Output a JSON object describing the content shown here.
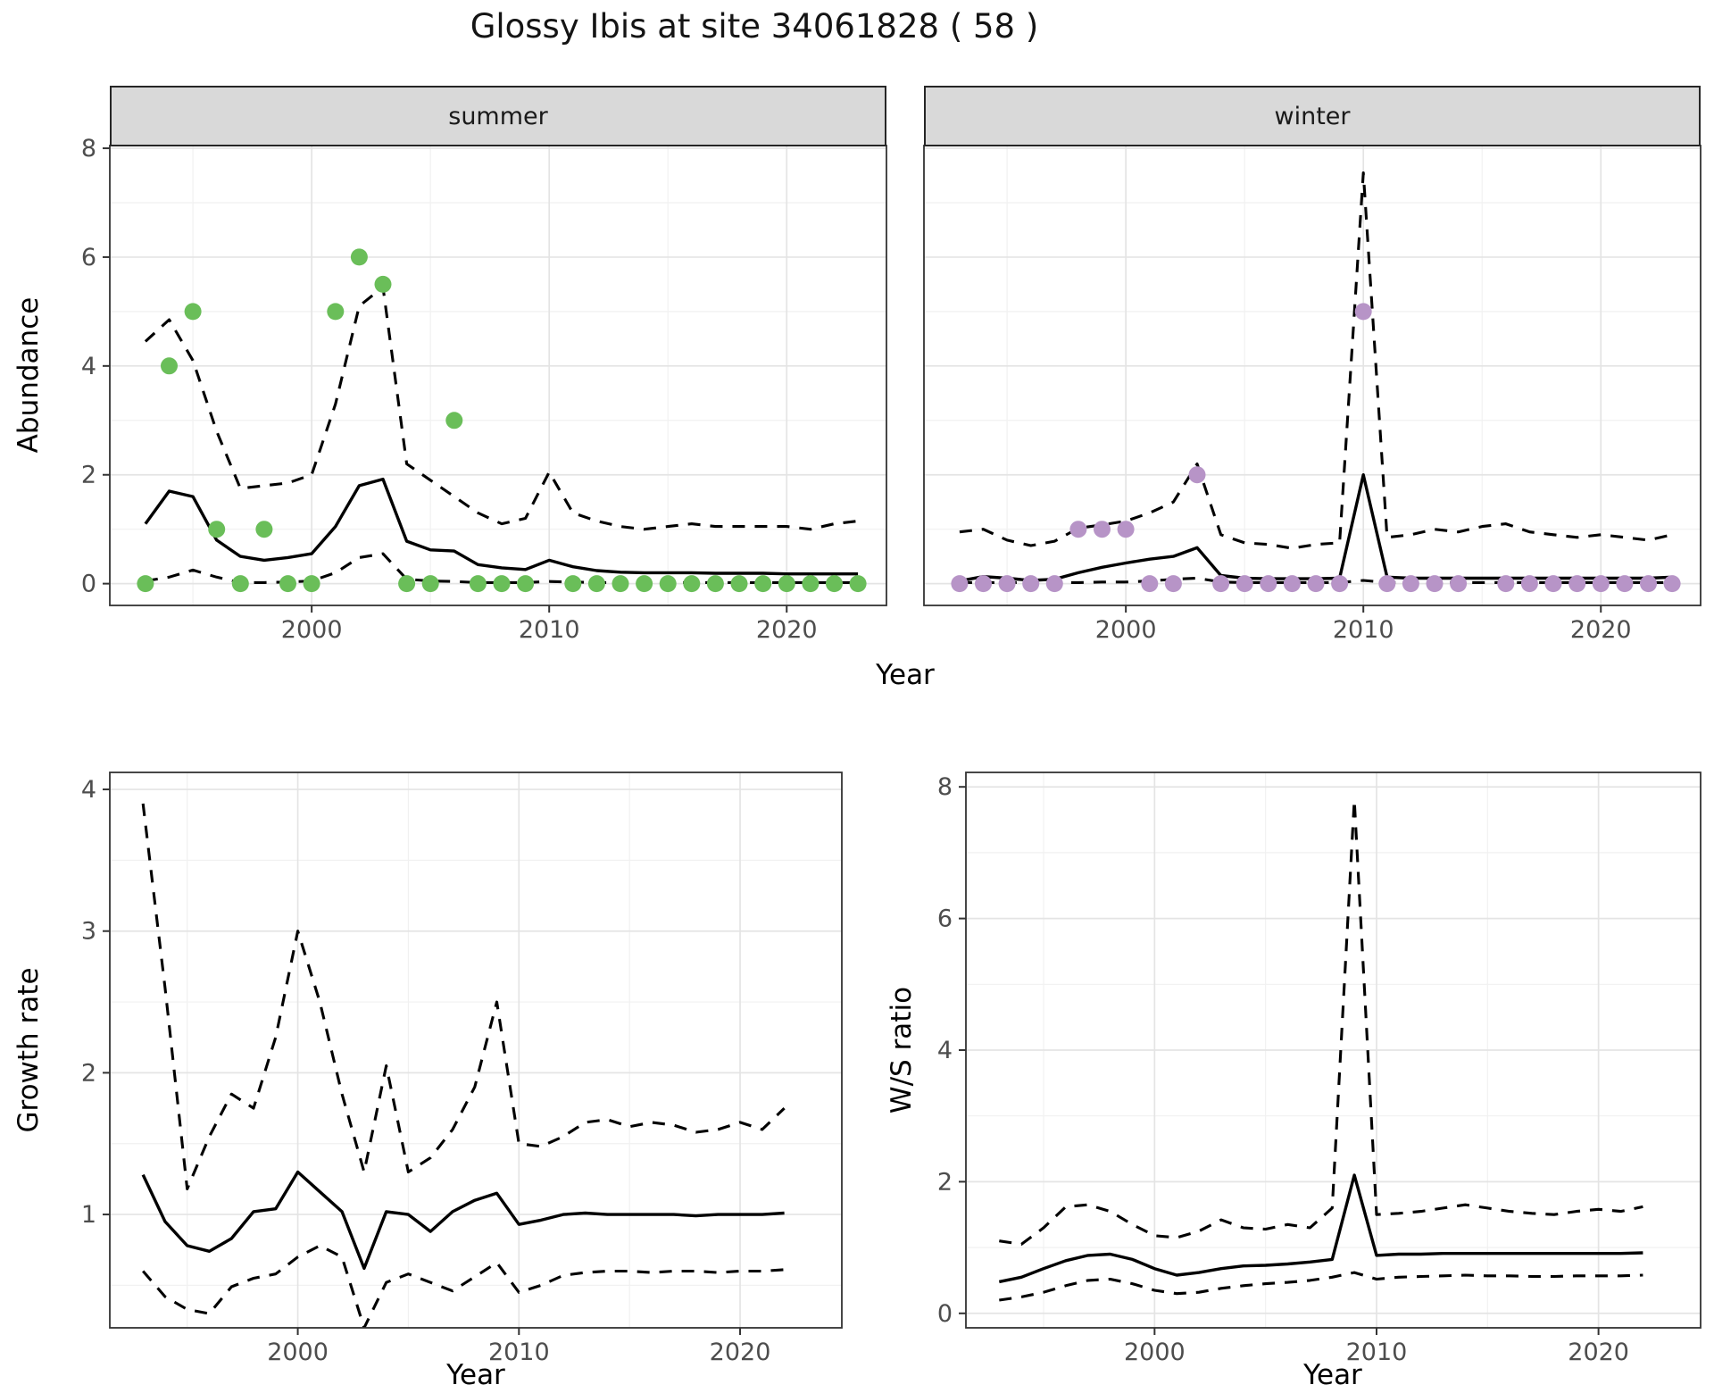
{
  "title": "Glossy Ibis at site 34061828 ( 58 )",
  "colors": {
    "point_summer": "#6abe59",
    "point_winter": "#b794c7",
    "line": "#000000",
    "strip_bg": "#d9d9d9",
    "grid_major": "#e4e4e4",
    "grid_minor": "#f1f1f1",
    "panel_border": "#333333",
    "tick_mark": "#333333",
    "tick_label": "#4d4d4d"
  },
  "chart_data": [
    {
      "id": "abundance-summer",
      "type": "line",
      "facet": "summer",
      "xlabel": "Year",
      "ylabel": "Abundance",
      "legend_position": "none",
      "grid": true,
      "xlim": [
        1991.5,
        2024.2
      ],
      "ylim": [
        -0.4,
        8.05
      ],
      "x_ticks": [
        2000,
        2010,
        2020
      ],
      "x_minor": [
        1995,
        2005,
        2015
      ],
      "y_ticks": [
        0,
        2,
        4,
        6,
        8
      ],
      "y_minor": [
        1,
        3,
        5,
        7
      ],
      "point_color": "#6abe59",
      "x": [
        1993,
        1994,
        1995,
        1996,
        1997,
        1998,
        1999,
        2000,
        2001,
        2002,
        2003,
        2004,
        2005,
        2006,
        2007,
        2008,
        2009,
        2010,
        2011,
        2012,
        2013,
        2014,
        2015,
        2016,
        2017,
        2018,
        2019,
        2020,
        2021,
        2022,
        2023
      ],
      "series": [
        {
          "name": "fit",
          "style": "solid",
          "values": [
            1.1,
            1.7,
            1.6,
            0.8,
            0.5,
            0.43,
            0.48,
            0.55,
            1.05,
            1.8,
            1.92,
            0.78,
            0.62,
            0.6,
            0.35,
            0.29,
            0.26,
            0.43,
            0.31,
            0.24,
            0.21,
            0.2,
            0.2,
            0.2,
            0.19,
            0.19,
            0.19,
            0.18,
            0.18,
            0.18,
            0.18
          ]
        },
        {
          "name": "upper_ci",
          "style": "dashed",
          "values": [
            4.45,
            4.85,
            4.1,
            2.8,
            1.75,
            1.8,
            1.85,
            2.0,
            3.3,
            5.1,
            5.45,
            2.2,
            1.9,
            1.6,
            1.3,
            1.1,
            1.2,
            2.05,
            1.3,
            1.15,
            1.05,
            1.0,
            1.05,
            1.1,
            1.05,
            1.05,
            1.05,
            1.05,
            1.0,
            1.1,
            1.15
          ]
        },
        {
          "name": "lower_ci",
          "style": "dashed",
          "values": [
            0.05,
            0.12,
            0.25,
            0.12,
            0.02,
            0.02,
            0.03,
            0.05,
            0.2,
            0.48,
            0.55,
            0.08,
            0.05,
            0.04,
            0.02,
            0.02,
            0.02,
            0.04,
            0.03,
            0.02,
            0.02,
            0.02,
            0.02,
            0.02,
            0.02,
            0.02,
            0.02,
            0.02,
            0.02,
            0.02,
            0.02
          ]
        }
      ],
      "obs": {
        "x": [
          1993,
          1994,
          1995,
          1996,
          1997,
          1998,
          1999,
          2000,
          2001,
          2002,
          2003,
          2004,
          2005,
          2006,
          2007,
          2008,
          2009,
          2011,
          2012,
          2013,
          2014,
          2015,
          2016,
          2017,
          2018,
          2019,
          2020,
          2021,
          2022,
          2023
        ],
        "y": [
          0,
          4,
          5,
          1,
          0,
          1,
          0,
          0,
          5,
          6,
          5.5,
          0,
          0,
          3,
          0,
          0,
          0,
          0,
          0,
          0,
          0,
          0,
          0,
          0,
          0,
          0,
          0,
          0,
          0,
          0
        ]
      }
    },
    {
      "id": "abundance-winter",
      "type": "line",
      "facet": "winter",
      "xlabel": "Year",
      "ylabel": "Abundance",
      "legend_position": "none",
      "grid": true,
      "xlim": [
        1991.5,
        2024.2
      ],
      "ylim": [
        -0.4,
        8.05
      ],
      "x_ticks": [
        2000,
        2010,
        2020
      ],
      "x_minor": [
        1995,
        2005,
        2015
      ],
      "y_ticks": [
        0,
        2,
        4,
        6,
        8
      ],
      "y_minor": [
        1,
        3,
        5,
        7
      ],
      "point_color": "#b794c7",
      "x": [
        1993,
        1994,
        1995,
        1996,
        1997,
        1998,
        1999,
        2000,
        2001,
        2002,
        2003,
        2004,
        2005,
        2006,
        2007,
        2008,
        2009,
        2010,
        2011,
        2012,
        2013,
        2014,
        2015,
        2016,
        2017,
        2018,
        2019,
        2020,
        2021,
        2022,
        2023
      ],
      "series": [
        {
          "name": "fit",
          "style": "solid",
          "values": [
            0.05,
            0.13,
            0.1,
            0.06,
            0.08,
            0.2,
            0.3,
            0.38,
            0.45,
            0.5,
            0.66,
            0.15,
            0.1,
            0.09,
            0.09,
            0.09,
            0.1,
            2.0,
            0.12,
            0.1,
            0.1,
            0.1,
            0.1,
            0.1,
            0.1,
            0.1,
            0.1,
            0.1,
            0.1,
            0.1,
            0.12
          ]
        },
        {
          "name": "upper_ci",
          "style": "dashed",
          "values": [
            0.95,
            1.0,
            0.8,
            0.7,
            0.78,
            1.02,
            1.08,
            1.15,
            1.3,
            1.5,
            2.2,
            0.9,
            0.75,
            0.72,
            0.65,
            0.72,
            0.75,
            7.55,
            0.85,
            0.9,
            1.0,
            0.95,
            1.05,
            1.1,
            0.95,
            0.9,
            0.85,
            0.9,
            0.85,
            0.8,
            0.9
          ]
        },
        {
          "name": "lower_ci",
          "style": "dashed",
          "values": [
            0.02,
            0.02,
            0.02,
            0.02,
            0.02,
            0.02,
            0.03,
            0.03,
            0.05,
            0.08,
            0.1,
            0.03,
            0.02,
            0.02,
            0.02,
            0.02,
            0.02,
            0.06,
            0.02,
            0.02,
            0.02,
            0.02,
            0.02,
            0.02,
            0.02,
            0.02,
            0.02,
            0.02,
            0.02,
            0.02,
            0.02
          ]
        }
      ],
      "obs": {
        "x": [
          1993,
          1994,
          1995,
          1996,
          1997,
          1998,
          1999,
          2000,
          2001,
          2002,
          2003,
          2004,
          2005,
          2006,
          2007,
          2008,
          2009,
          2010,
          2011,
          2012,
          2013,
          2014,
          2016,
          2017,
          2018,
          2019,
          2020,
          2021,
          2022,
          2023
        ],
        "y": [
          0,
          0,
          0,
          0,
          0,
          1,
          1,
          1,
          0,
          0,
          2,
          0,
          0,
          0,
          0,
          0,
          0,
          5,
          0,
          0,
          0,
          0,
          0,
          0,
          0,
          0,
          0,
          0,
          0,
          0
        ]
      }
    },
    {
      "id": "growth-rate",
      "type": "line",
      "facet": null,
      "xlabel": "Year",
      "ylabel": "Growth rate",
      "legend_position": "none",
      "grid": true,
      "xlim": [
        1991.5,
        2024.6
      ],
      "ylim": [
        0.2,
        4.12
      ],
      "x_ticks": [
        2000,
        2010,
        2020
      ],
      "x_minor": [
        1995,
        2005,
        2015
      ],
      "y_ticks": [
        1,
        2,
        3,
        4
      ],
      "y_minor": [
        0.5,
        1.5,
        2.5,
        3.5
      ],
      "point_color": null,
      "x": [
        1993,
        1994,
        1995,
        1996,
        1997,
        1998,
        1999,
        2000,
        2001,
        2002,
        2003,
        2004,
        2005,
        2006,
        2007,
        2008,
        2009,
        2010,
        2011,
        2012,
        2013,
        2014,
        2015,
        2016,
        2017,
        2018,
        2019,
        2020,
        2021,
        2022
      ],
      "series": [
        {
          "name": "fit",
          "style": "solid",
          "values": [
            1.28,
            0.95,
            0.78,
            0.74,
            0.83,
            1.02,
            1.04,
            1.3,
            1.16,
            1.02,
            0.62,
            1.02,
            1.0,
            0.88,
            1.02,
            1.1,
            1.15,
            0.93,
            0.96,
            1.0,
            1.01,
            1.0,
            1.0,
            1.0,
            1.0,
            0.99,
            1.0,
            1.0,
            1.0,
            1.01
          ]
        },
        {
          "name": "upper_ci",
          "style": "dashed",
          "values": [
            3.9,
            2.6,
            1.18,
            1.55,
            1.85,
            1.75,
            2.25,
            3.0,
            2.5,
            1.85,
            1.3,
            2.05,
            1.3,
            1.4,
            1.6,
            1.9,
            2.5,
            1.5,
            1.48,
            1.55,
            1.65,
            1.67,
            1.62,
            1.65,
            1.63,
            1.58,
            1.6,
            1.65,
            1.6,
            1.75
          ]
        },
        {
          "name": "lower_ci",
          "style": "dashed",
          "values": [
            0.6,
            0.42,
            0.33,
            0.3,
            0.49,
            0.55,
            0.58,
            0.7,
            0.78,
            0.7,
            0.2,
            0.52,
            0.58,
            0.52,
            0.46,
            0.56,
            0.66,
            0.45,
            0.5,
            0.57,
            0.59,
            0.6,
            0.6,
            0.59,
            0.6,
            0.6,
            0.59,
            0.6,
            0.6,
            0.61
          ]
        }
      ],
      "obs": {
        "x": [],
        "y": []
      }
    },
    {
      "id": "ws-ratio",
      "type": "line",
      "facet": null,
      "xlabel": "Year",
      "ylabel": "W/S ratio",
      "legend_position": "none",
      "grid": true,
      "xlim": [
        1991.5,
        2024.6
      ],
      "ylim": [
        -0.22,
        8.22
      ],
      "x_ticks": [
        2000,
        2010,
        2020
      ],
      "x_minor": [
        1995,
        2005,
        2015
      ],
      "y_ticks": [
        0,
        2,
        4,
        6,
        8
      ],
      "y_minor": [
        1,
        3,
        5,
        7
      ],
      "point_color": null,
      "x": [
        1993,
        1994,
        1995,
        1996,
        1997,
        1998,
        1999,
        2000,
        2001,
        2002,
        2003,
        2004,
        2005,
        2006,
        2007,
        2008,
        2009,
        2010,
        2011,
        2012,
        2013,
        2014,
        2015,
        2016,
        2017,
        2018,
        2019,
        2020,
        2021,
        2022
      ],
      "series": [
        {
          "name": "fit",
          "style": "solid",
          "values": [
            0.48,
            0.55,
            0.68,
            0.8,
            0.88,
            0.9,
            0.82,
            0.68,
            0.58,
            0.62,
            0.68,
            0.72,
            0.73,
            0.75,
            0.78,
            0.82,
            2.1,
            0.88,
            0.9,
            0.9,
            0.91,
            0.91,
            0.91,
            0.91,
            0.91,
            0.91,
            0.91,
            0.91,
            0.91,
            0.92
          ]
        },
        {
          "name": "upper_ci",
          "style": "dashed",
          "values": [
            1.1,
            1.05,
            1.3,
            1.62,
            1.65,
            1.55,
            1.35,
            1.18,
            1.15,
            1.25,
            1.42,
            1.3,
            1.28,
            1.35,
            1.3,
            1.6,
            7.8,
            1.5,
            1.52,
            1.55,
            1.6,
            1.65,
            1.6,
            1.55,
            1.52,
            1.5,
            1.55,
            1.58,
            1.55,
            1.62
          ]
        },
        {
          "name": "lower_ci",
          "style": "dashed",
          "values": [
            0.2,
            0.25,
            0.32,
            0.42,
            0.5,
            0.52,
            0.45,
            0.35,
            0.3,
            0.32,
            0.38,
            0.42,
            0.45,
            0.47,
            0.5,
            0.55,
            0.62,
            0.52,
            0.55,
            0.56,
            0.57,
            0.58,
            0.57,
            0.57,
            0.56,
            0.56,
            0.57,
            0.57,
            0.57,
            0.58
          ]
        }
      ],
      "obs": {
        "x": [],
        "y": []
      }
    }
  ]
}
